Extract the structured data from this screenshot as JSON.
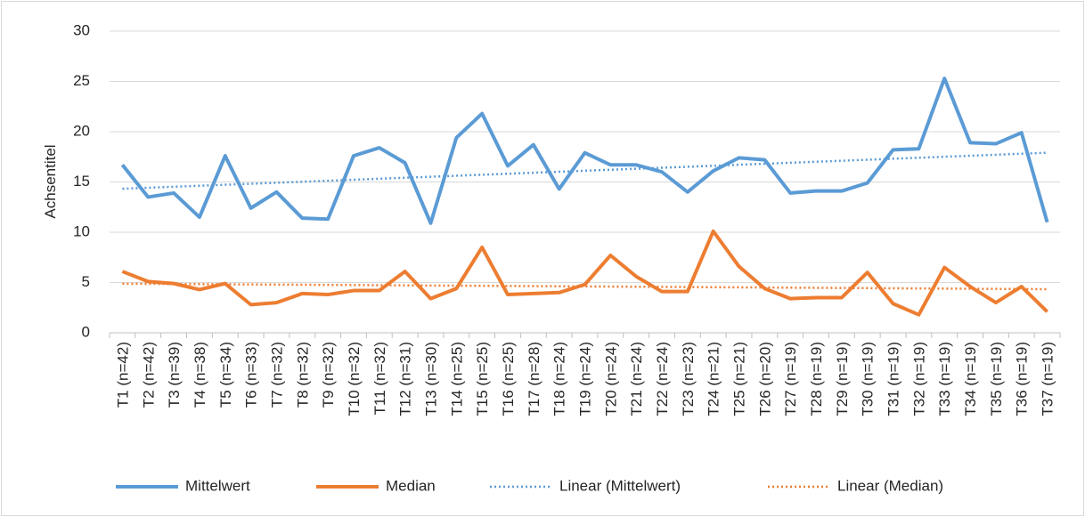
{
  "chart_data": {
    "type": "line",
    "y_label": "Achsentitel",
    "categories": [
      "T1 (n=42)",
      "T2 (n=42)",
      "T3 (n=39)",
      "T4 (n=38)",
      "T5 (n=34)",
      "T6 (n=33)",
      "T7 (n=32)",
      "T8 (n=32)",
      "T9 (n=32)",
      "T10 (n=32)",
      "T11 (n=32)",
      "T12 (n=31)",
      "T13 (n=30)",
      "T14 (n=25)",
      "T15 (n=25)",
      "T16 (n=25)",
      "T17 (n=28)",
      "T18 (n=24)",
      "T19 (n=24)",
      "T20 (n=24)",
      "T21 (n=24)",
      "T22 (n=24)",
      "T23 (n=23)",
      "T24 (n=21)",
      "T25 (n=21)",
      "T26 (n=20)",
      "T27 (n=19)",
      "T28 (n=19)",
      "T29 (n=19)",
      "T30 (n=19)",
      "T31 (n=19)",
      "T32 (n=19)",
      "T33 (n=19)",
      "T34 (n=19)",
      "T35 (n=19)",
      "T36 (n=19)",
      "T37 (n=19)"
    ],
    "series": [
      {
        "name": "Mittelwert",
        "color": "#5b9bd5",
        "values": [
          16.7,
          13.5,
          13.9,
          11.5,
          17.6,
          12.4,
          14.0,
          11.4,
          11.3,
          17.6,
          18.4,
          16.9,
          10.9,
          19.4,
          21.8,
          16.6,
          18.7,
          14.3,
          17.9,
          16.7,
          16.7,
          16.0,
          14.0,
          16.1,
          17.4,
          17.2,
          13.9,
          14.1,
          14.1,
          14.9,
          18.2,
          18.3,
          25.3,
          18.9,
          18.8,
          19.9,
          11.0
        ]
      },
      {
        "name": "Median",
        "color": "#ed7d31",
        "values": [
          6.1,
          5.1,
          4.9,
          4.3,
          4.9,
          2.8,
          3.0,
          3.9,
          3.8,
          4.2,
          4.2,
          6.1,
          3.4,
          4.4,
          8.5,
          3.8,
          3.9,
          4.0,
          4.8,
          7.7,
          5.6,
          4.1,
          4.1,
          10.1,
          6.6,
          4.4,
          3.4,
          3.5,
          3.5,
          6.0,
          2.9,
          1.8,
          6.5,
          4.6,
          3.0,
          4.6,
          2.1
        ]
      }
    ],
    "trendlines": [
      {
        "name": "Linear (Mittelwert)",
        "color": "#5b9bd5",
        "of": 0
      },
      {
        "name": "Linear (Median)",
        "color": "#ed7d31",
        "of": 1
      }
    ],
    "ylim": [
      0,
      30
    ],
    "yticks": [
      0,
      5,
      10,
      15,
      20,
      25,
      30
    ],
    "grid": true,
    "legend": "bottom"
  }
}
